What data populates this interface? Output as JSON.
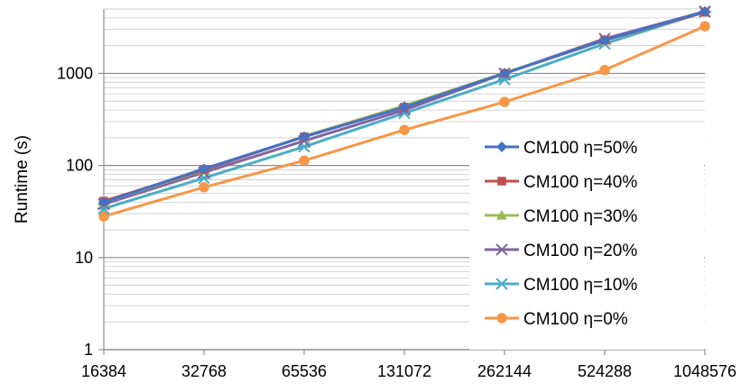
{
  "chart_data": {
    "type": "line",
    "title": "",
    "xlabel": "",
    "ylabel": "Runtime (s)",
    "yscale": "log",
    "ylim": [
      1,
      5000
    ],
    "grid": true,
    "legend_position": "right",
    "categories": [
      "16384",
      "32768",
      "65536",
      "131072",
      "262144",
      "524288",
      "1048576"
    ],
    "y_ticks": [
      "1",
      "10",
      "100",
      "1000"
    ],
    "series": [
      {
        "name": "CM100 η=50%",
        "color": "#4472C4",
        "marker": "diamond",
        "values": [
          40,
          92,
          205,
          430,
          1000,
          2300,
          4700
        ]
      },
      {
        "name": "CM100 η=40%",
        "color": "#C0504D",
        "marker": "square",
        "values": [
          41,
          90,
          205,
          430,
          1000,
          2300,
          4600
        ]
      },
      {
        "name": "CM100 η=30%",
        "color": "#9BBB59",
        "marker": "triangle",
        "values": [
          40,
          89,
          208,
          445,
          1010,
          2280,
          4650
        ]
      },
      {
        "name": "CM100 η=20%",
        "color": "#8064A2",
        "marker": "x",
        "values": [
          38,
          84,
          185,
          400,
          1000,
          2380,
          4700
        ]
      },
      {
        "name": "CM100 η=10%",
        "color": "#4BACC6",
        "marker": "asterisk",
        "values": [
          34,
          73,
          160,
          370,
          860,
          2100,
          4650
        ]
      },
      {
        "name": "CM100 η=0%",
        "color": "#F79646",
        "marker": "circle",
        "values": [
          28,
          58,
          113,
          243,
          490,
          1090,
          3250
        ]
      }
    ]
  }
}
